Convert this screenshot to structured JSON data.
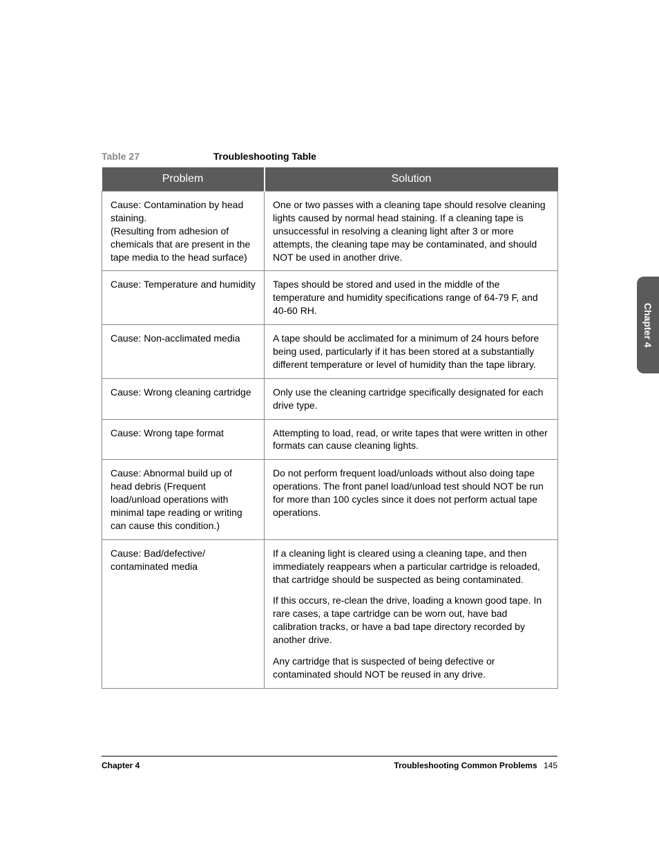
{
  "caption": {
    "label": "Table 27",
    "title": "Troubleshooting Table"
  },
  "headers": {
    "problem": "Problem",
    "solution": "Solution"
  },
  "rows": [
    {
      "problem": "Cause: Contamination by head staining.\n(Resulting from adhesion of chemicals that are present in the tape media to the head surface)",
      "solutions": [
        "One or two passes with a cleaning tape should resolve cleaning lights caused by normal head staining. If a cleaning tape is unsuccessful in resolving a cleaning light after 3 or more attempts, the cleaning tape may be contaminated, and should NOT be used in another drive."
      ]
    },
    {
      "problem": "Cause: Temperature and humidity",
      "solutions": [
        "Tapes should be stored and used in the middle of the temperature and humidity specifications range of 64-79 F, and 40-60 RH."
      ]
    },
    {
      "problem": "Cause: Non-acclimated media",
      "solutions": [
        "A tape should be acclimated for a minimum of 24 hours before being used, particularly if it has been stored at a substantially different temperature or level of humidity than the tape library."
      ]
    },
    {
      "problem": "Cause: Wrong cleaning cartridge",
      "solutions": [
        "Only use the cleaning cartridge specifically designated for each drive type."
      ]
    },
    {
      "problem": "Cause: Wrong tape format",
      "solutions": [
        "Attempting to load, read, or write tapes that were written in other formats can cause cleaning lights."
      ]
    },
    {
      "problem": "Cause: Abnormal build up of head debris (Frequent load/unload operations with minimal tape reading or writing can cause this condition.)",
      "solutions": [
        "Do not perform frequent load/unloads without also doing tape operations. The front panel load/unload test should NOT be run for more than 100 cycles since it does not perform actual tape operations."
      ]
    },
    {
      "problem": "Cause: Bad/defective/\ncontaminated media",
      "solutions": [
        "If a cleaning light is cleared using a cleaning tape, and then immediately reappears when a particular cartridge is reloaded, that cartridge should be suspected as being contaminated.",
        "If this occurs, re-clean the drive, loading a known good tape. In rare cases, a tape cartridge can be worn out, have bad calibration tracks, or have a bad tape directory recorded by another drive.",
        "Any cartridge that is suspected of being defective or contaminated should NOT be reused in any drive."
      ]
    }
  ],
  "sideTab": "Chapter 4",
  "footer": {
    "left": "Chapter 4",
    "rightTitle": "Troubleshooting Common Problems",
    "pageNum": "145"
  },
  "colors": {
    "headerBg": "#5b5b5b",
    "headerFg": "#ffffff",
    "border": "#888888",
    "captionLabel": "#888888"
  }
}
